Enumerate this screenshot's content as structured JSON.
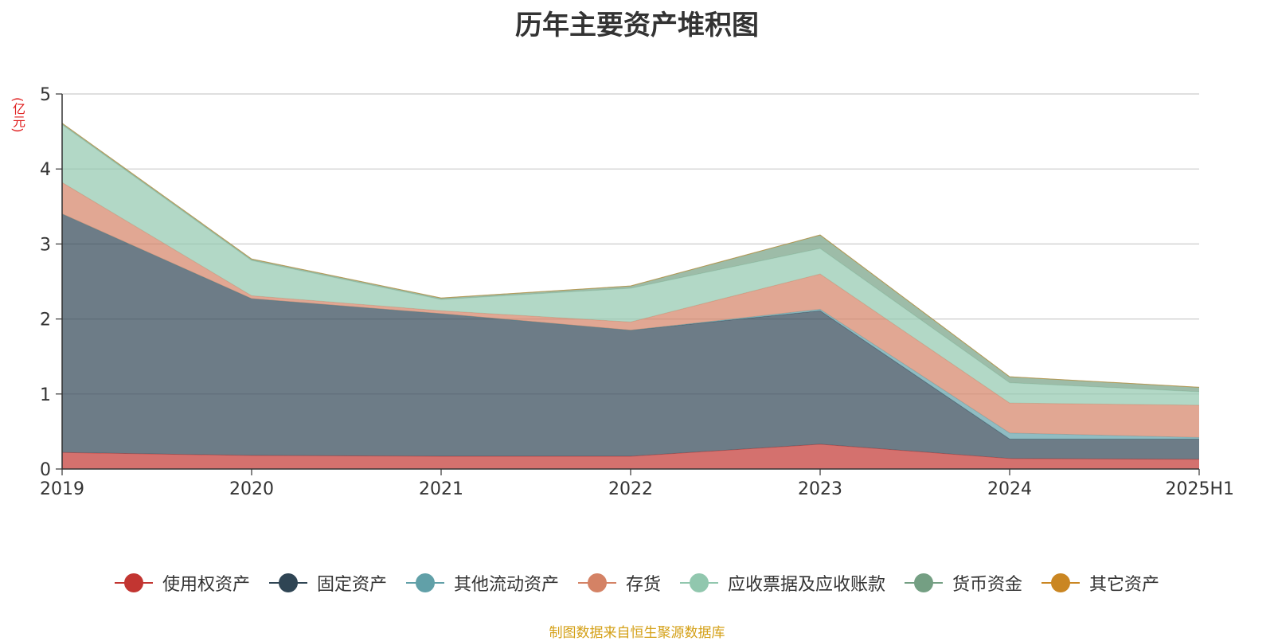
{
  "chart_data": {
    "type": "area",
    "stacked": true,
    "title": "历年主要资产堆积图",
    "unit_label": "(亿元)",
    "xlabel": "",
    "ylabel": "",
    "categories": [
      "2019",
      "2020",
      "2021",
      "2022",
      "2023",
      "2024",
      "2025H1"
    ],
    "ylim": [
      0,
      5
    ],
    "yticks": [
      "0",
      "1",
      "2",
      "3",
      "4",
      "5"
    ],
    "grid": true,
    "legend_position": "bottom",
    "series": [
      {
        "name": "使用权资产",
        "color": "#c23531",
        "values": [
          0.22,
          0.18,
          0.17,
          0.17,
          0.33,
          0.14,
          0.13
        ]
      },
      {
        "name": "固定资产",
        "color": "#2f4554",
        "values": [
          3.18,
          2.09,
          1.9,
          1.68,
          1.78,
          0.26,
          0.27
        ]
      },
      {
        "name": "其他流动资产",
        "color": "#61a0a8",
        "values": [
          0.0,
          0.0,
          0.0,
          0.0,
          0.02,
          0.08,
          0.02
        ]
      },
      {
        "name": "存货",
        "color": "#d48265",
        "values": [
          0.42,
          0.04,
          0.04,
          0.11,
          0.47,
          0.4,
          0.43
        ]
      },
      {
        "name": "应收票据及应收账款",
        "color": "#91c7ae",
        "values": [
          0.77,
          0.47,
          0.15,
          0.45,
          0.34,
          0.27,
          0.18
        ]
      },
      {
        "name": "货币资金",
        "color": "#749f83",
        "values": [
          0.02,
          0.02,
          0.02,
          0.03,
          0.18,
          0.08,
          0.06
        ]
      },
      {
        "name": "其它资产",
        "color": "#ca8622",
        "values": [
          0,
          0,
          0,
          0,
          0,
          0,
          0
        ]
      }
    ],
    "source": "制图数据来自恒生聚源数据库"
  }
}
